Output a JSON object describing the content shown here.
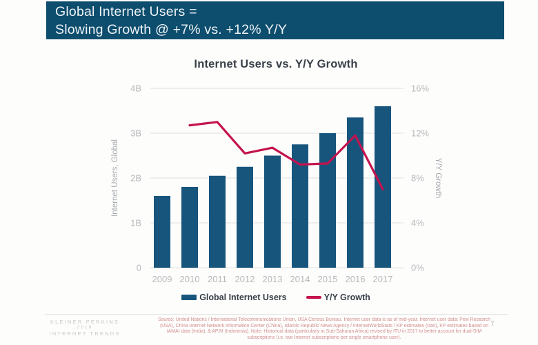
{
  "colors": {
    "brand_teal": "#0d4d6e",
    "bar_teal": "#17557d",
    "line_crimson": "#c4134e",
    "grid_gray": "#e0e0e0",
    "tick_gray": "#b5b8ba",
    "axis_label_gray": "#a6aaad"
  },
  "header": {
    "line1": "Global Internet Users =",
    "line2": "Slowing Growth @ +7% vs. +12% Y/Y"
  },
  "chart_data": {
    "type": "bar",
    "title": "Internet Users vs. Y/Y Growth",
    "categories": [
      "2009",
      "2010",
      "2011",
      "2012",
      "2013",
      "2014",
      "2015",
      "2016",
      "2017"
    ],
    "series": [
      {
        "name": "Global Internet Users",
        "type": "bar",
        "axis": "left",
        "unit": "billions",
        "color": "#17557d",
        "values": [
          1.6,
          1.8,
          2.05,
          2.25,
          2.5,
          2.75,
          3.0,
          3.35,
          3.6
        ]
      },
      {
        "name": "Y/Y Growth",
        "type": "line",
        "axis": "right",
        "unit": "%",
        "color": "#c4134e",
        "values": [
          null,
          12.7,
          13.0,
          10.2,
          10.7,
          9.2,
          9.3,
          11.8,
          7.0
        ]
      }
    ],
    "ylabel": "Internet Users, Global",
    "y2label": "Y/Y Growth",
    "ylim": [
      0,
      4
    ],
    "y2lim": [
      0,
      16
    ],
    "y_ticks": [
      "0",
      "1B",
      "2B",
      "3B",
      "4B"
    ],
    "y2_ticks": [
      "0%",
      "4%",
      "8%",
      "12%",
      "16%"
    ],
    "grid": true,
    "legend_position": "bottom"
  },
  "footer": {
    "logo_line1": "KLEINER PERKINS",
    "logo_line2": "2018",
    "logo_line3": "INTERNET TRENDS",
    "source": "Source: United Nations / International Telecommunications Union, USA Census Bureau. Internet user data is as of mid-year. Internet user data: Pew Research (USA), China Internet Network Information Center (China), Islamic Republic News Agency / InternetWorldStats / KP estimates (Iran), KP estimates based on IAMAI data (India), & APJII (Indonesia). Note: Historical data (particularly in Sub-Saharan Africa) revised by ITU in 2017 to better account for dual-SIM subscriptions (i.e. two Internet subscriptions per single smartphone user).",
    "page_number": "7"
  }
}
